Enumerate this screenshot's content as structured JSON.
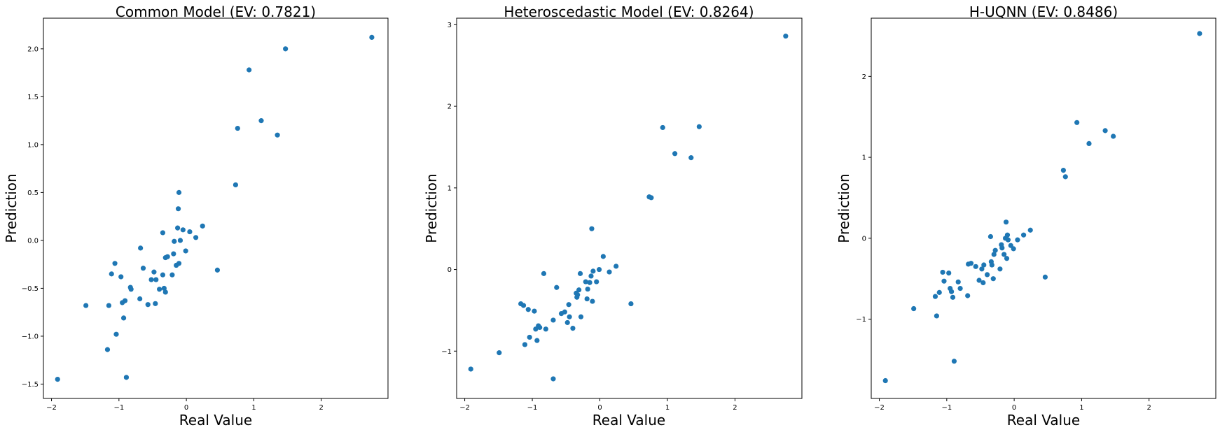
{
  "colors": {
    "marker": "#1f77b4",
    "axes": "#000000",
    "background": "#ffffff"
  },
  "chart_data": [
    {
      "type": "scatter",
      "title": "Common Model (EV: 0.7821)",
      "xlabel": "Real Value",
      "ylabel": "Prediction",
      "grid": false,
      "xlim": [
        -2.12,
        2.99
      ],
      "ylim": [
        -1.65,
        2.32
      ],
      "xticks": [
        -2,
        -1,
        0,
        1,
        2
      ],
      "xtick_labels": [
        "−2",
        "−1",
        "0",
        "1",
        "2"
      ],
      "yticks": [
        -1.5,
        -1.0,
        -0.5,
        0.0,
        0.5,
        1.0,
        1.5,
        2.0
      ],
      "ytick_labels": [
        "−1.5",
        "−1.0",
        "−0.5",
        "0.0",
        "0.5",
        "1.0",
        "1.5",
        "2.0"
      ],
      "points": [
        [
          -1.91,
          -1.45
        ],
        [
          -1.49,
          -0.68
        ],
        [
          -1.17,
          -1.14
        ],
        [
          -1.15,
          -0.68
        ],
        [
          -1.11,
          -0.35
        ],
        [
          -1.06,
          -0.24
        ],
        [
          -1.04,
          -0.98
        ],
        [
          -0.97,
          -0.38
        ],
        [
          -0.95,
          -0.65
        ],
        [
          -0.93,
          -0.81
        ],
        [
          -0.91,
          -0.63
        ],
        [
          -0.89,
          -1.43
        ],
        [
          -0.83,
          -0.49
        ],
        [
          -0.82,
          -0.51
        ],
        [
          -0.69,
          -0.61
        ],
        [
          -0.68,
          -0.08
        ],
        [
          -0.64,
          -0.29
        ],
        [
          -0.57,
          -0.67
        ],
        [
          -0.52,
          -0.41
        ],
        [
          -0.48,
          -0.33
        ],
        [
          -0.46,
          -0.66
        ],
        [
          -0.45,
          -0.41
        ],
        [
          -0.4,
          -0.51
        ],
        [
          -0.35,
          0.08
        ],
        [
          -0.35,
          -0.36
        ],
        [
          -0.33,
          -0.5
        ],
        [
          -0.31,
          -0.54
        ],
        [
          -0.31,
          -0.18
        ],
        [
          -0.28,
          -0.17
        ],
        [
          -0.21,
          -0.36
        ],
        [
          -0.19,
          -0.14
        ],
        [
          -0.18,
          -0.01
        ],
        [
          -0.15,
          -0.26
        ],
        [
          -0.13,
          0.13
        ],
        [
          -0.12,
          0.33
        ],
        [
          -0.11,
          -0.24
        ],
        [
          -0.11,
          0.5
        ],
        [
          -0.09,
          0.0
        ],
        [
          -0.05,
          0.11
        ],
        [
          -0.01,
          -0.11
        ],
        [
          0.05,
          0.09
        ],
        [
          0.14,
          0.03
        ],
        [
          0.24,
          0.15
        ],
        [
          0.46,
          -0.31
        ],
        [
          0.73,
          0.58
        ],
        [
          0.76,
          1.17
        ],
        [
          0.93,
          1.78
        ],
        [
          1.11,
          1.25
        ],
        [
          1.35,
          1.1
        ],
        [
          1.47,
          2.0
        ],
        [
          2.75,
          2.12
        ]
      ]
    },
    {
      "type": "scatter",
      "title": "Heteroscedastic Model (EV: 0.8264)",
      "xlabel": "Real Value",
      "ylabel": "Prediction",
      "grid": false,
      "xlim": [
        -2.12,
        2.99
      ],
      "ylim": [
        -1.58,
        3.08
      ],
      "xticks": [
        -2,
        -1,
        0,
        1,
        2
      ],
      "xtick_labels": [
        "−2",
        "−1",
        "0",
        "1",
        "2"
      ],
      "yticks": [
        -1,
        0,
        1,
        2,
        3
      ],
      "ytick_labels": [
        "−1",
        "0",
        "1",
        "2",
        "3"
      ],
      "points": [
        [
          -1.91,
          -1.22
        ],
        [
          -1.49,
          -1.02
        ],
        [
          -1.17,
          -0.42
        ],
        [
          -1.13,
          -0.44
        ],
        [
          -1.11,
          -0.92
        ],
        [
          -1.06,
          -0.49
        ],
        [
          -1.04,
          -0.83
        ],
        [
          -0.97,
          -0.51
        ],
        [
          -0.95,
          -0.73
        ],
        [
          -0.93,
          -0.87
        ],
        [
          -0.91,
          -0.69
        ],
        [
          -0.89,
          -0.71
        ],
        [
          -0.83,
          -0.05
        ],
        [
          -0.8,
          -0.73
        ],
        [
          -0.69,
          -1.34
        ],
        [
          -0.69,
          -0.62
        ],
        [
          -0.64,
          -0.22
        ],
        [
          -0.57,
          -0.54
        ],
        [
          -0.52,
          -0.52
        ],
        [
          -0.48,
          -0.65
        ],
        [
          -0.46,
          -0.43
        ],
        [
          -0.45,
          -0.58
        ],
        [
          -0.4,
          -0.72
        ],
        [
          -0.35,
          -0.29
        ],
        [
          -0.34,
          -0.34
        ],
        [
          -0.33,
          -0.31
        ],
        [
          -0.31,
          -0.25
        ],
        [
          -0.29,
          -0.05
        ],
        [
          -0.28,
          -0.58
        ],
        [
          -0.21,
          -0.15
        ],
        [
          -0.19,
          -0.36
        ],
        [
          -0.18,
          -0.24
        ],
        [
          -0.15,
          -0.16
        ],
        [
          -0.13,
          -0.08
        ],
        [
          -0.12,
          0.5
        ],
        [
          -0.11,
          -0.39
        ],
        [
          -0.1,
          -0.02
        ],
        [
          -0.05,
          -0.15
        ],
        [
          -0.01,
          0.0
        ],
        [
          0.05,
          0.16
        ],
        [
          0.14,
          -0.03
        ],
        [
          0.24,
          0.04
        ],
        [
          0.46,
          -0.42
        ],
        [
          0.73,
          0.89
        ],
        [
          0.76,
          0.88
        ],
        [
          0.93,
          1.74
        ],
        [
          1.11,
          1.42
        ],
        [
          1.35,
          1.37
        ],
        [
          1.47,
          1.75
        ],
        [
          2.75,
          2.86
        ]
      ]
    },
    {
      "type": "scatter",
      "title": "H-UQNN (EV: 0.8486)",
      "xlabel": "Real Value",
      "ylabel": "Prediction",
      "grid": false,
      "xlim": [
        -2.12,
        2.99
      ],
      "ylim": [
        -1.98,
        2.72
      ],
      "xticks": [
        -2,
        -1,
        0,
        1,
        2
      ],
      "xtick_labels": [
        "−2",
        "−1",
        "0",
        "1",
        "2"
      ],
      "yticks": [
        -1,
        0,
        1,
        2
      ],
      "ytick_labels": [
        "−1",
        "0",
        "1",
        "2"
      ],
      "points": [
        [
          -1.91,
          -1.76
        ],
        [
          -1.49,
          -0.87
        ],
        [
          -1.17,
          -0.72
        ],
        [
          -1.15,
          -0.96
        ],
        [
          -1.11,
          -0.67
        ],
        [
          -1.06,
          -0.42
        ],
        [
          -1.04,
          -0.53
        ],
        [
          -0.97,
          -0.43
        ],
        [
          -0.95,
          -0.62
        ],
        [
          -0.93,
          -0.66
        ],
        [
          -0.91,
          -0.73
        ],
        [
          -0.89,
          -1.52
        ],
        [
          -0.83,
          -0.54
        ],
        [
          -0.8,
          -0.62
        ],
        [
          -0.69,
          -0.71
        ],
        [
          -0.68,
          -0.32
        ],
        [
          -0.64,
          -0.31
        ],
        [
          -0.57,
          -0.35
        ],
        [
          -0.52,
          -0.52
        ],
        [
          -0.48,
          -0.38
        ],
        [
          -0.46,
          -0.55
        ],
        [
          -0.45,
          -0.33
        ],
        [
          -0.4,
          -0.45
        ],
        [
          -0.35,
          0.02
        ],
        [
          -0.34,
          -0.29
        ],
        [
          -0.33,
          -0.33
        ],
        [
          -0.31,
          -0.5
        ],
        [
          -0.3,
          -0.2
        ],
        [
          -0.28,
          -0.15
        ],
        [
          -0.21,
          -0.38
        ],
        [
          -0.19,
          -0.08
        ],
        [
          -0.18,
          -0.12
        ],
        [
          -0.15,
          -0.2
        ],
        [
          -0.13,
          0.0
        ],
        [
          -0.12,
          0.2
        ],
        [
          -0.11,
          -0.25
        ],
        [
          -0.1,
          0.04
        ],
        [
          -0.09,
          -0.02
        ],
        [
          -0.05,
          -0.09
        ],
        [
          -0.01,
          -0.13
        ],
        [
          0.05,
          -0.02
        ],
        [
          0.14,
          0.04
        ],
        [
          0.24,
          0.1
        ],
        [
          0.46,
          -0.48
        ],
        [
          0.73,
          0.84
        ],
        [
          0.76,
          0.76
        ],
        [
          0.93,
          1.43
        ],
        [
          1.11,
          1.17
        ],
        [
          1.35,
          1.33
        ],
        [
          1.47,
          1.26
        ],
        [
          2.75,
          2.53
        ]
      ]
    }
  ]
}
